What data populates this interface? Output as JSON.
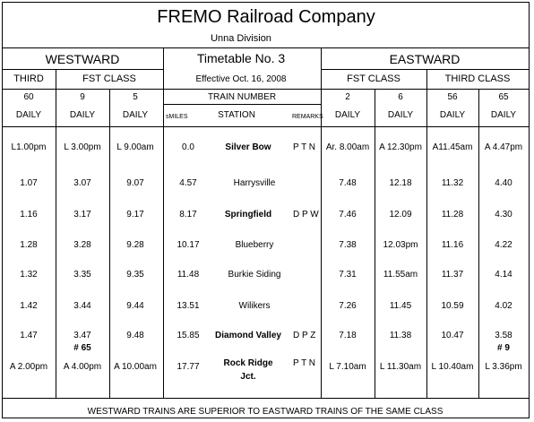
{
  "header": {
    "company": "FREMO Railroad Company",
    "division": "Unna Division",
    "timetable": "Timetable No. 3",
    "effective": "Effective Oct. 16, 2008"
  },
  "westward": {
    "label": "WESTWARD",
    "classes": [
      "THIRD",
      "FST CLASS"
    ],
    "trains": [
      "60",
      "9",
      "5"
    ],
    "days": [
      "DAILY",
      "DAILY",
      "DAILY"
    ]
  },
  "eastward": {
    "label": "EASTWARD",
    "classes": [
      "FST CLASS",
      "THIRD CLASS"
    ],
    "trains": [
      "2",
      "6",
      "56",
      "65"
    ],
    "days": [
      "DAILY",
      "DAILY",
      "DAILY",
      "DAILY"
    ]
  },
  "center": {
    "train_number_label": "TRAIN NUMBER",
    "miles_label": "sMILES",
    "station_label": "STATION",
    "remarks_label": "REMARKS"
  },
  "rows": [
    {
      "w60": "L1.00pm",
      "w9": "L 3.00pm",
      "w5": "L 9.00am",
      "miles": "0.0",
      "station": "Silver Bow",
      "station2": "",
      "bold": true,
      "remarks": "P T N",
      "e2": "Ar. 8.00am",
      "e6": "A 12.30pm",
      "e56": "A11.45am",
      "e65": "A 4.47pm"
    },
    {
      "w60": "1.07",
      "w9": "3.07",
      "w5": "9.07",
      "miles": "4.57",
      "station": "Harrysville",
      "station2": "",
      "bold": false,
      "remarks": "",
      "e2": "7.48",
      "e6": "12.18",
      "e56": "11.32",
      "e65": "4.40"
    },
    {
      "w60": "1.16",
      "w9": "3.17",
      "w5": "9.17",
      "miles": "8.17",
      "station": "Springfield",
      "station2": "",
      "bold": true,
      "remarks": "D P W",
      "e2": "7.46",
      "e6": "12.09",
      "e56": "11.28",
      "e65": "4.30"
    },
    {
      "w60": "1.28",
      "w9": "3.28",
      "w5": "9.28",
      "miles": "10.17",
      "station": "Blueberry",
      "station2": "",
      "bold": false,
      "remarks": "",
      "e2": "7.38",
      "e6": "12.03pm",
      "e56": "11.16",
      "e65": "4.22"
    },
    {
      "w60": "1.32",
      "w9": "3.35",
      "w5": "9.35",
      "miles": "11.48",
      "station": "Burkie Siding",
      "station2": "",
      "bold": false,
      "remarks": "",
      "e2": "7.31",
      "e6": "11.55am",
      "e56": "11.37",
      "e65": "4.14"
    },
    {
      "w60": "1.42",
      "w9": "3.44",
      "w5": "9.44",
      "miles": "13.51",
      "station": "Wilikers",
      "station2": "",
      "bold": false,
      "remarks": "",
      "e2": "7.26",
      "e6": "11.45",
      "e56": "10.59",
      "e65": "4.02"
    },
    {
      "w60": "1.47",
      "w9": "3.47",
      "w5": "9.48",
      "miles": "15.85",
      "station": "Diamond Valley",
      "station2": "",
      "bold": true,
      "remarks": "D P Z",
      "e2": "7.18",
      "e6": "11.38",
      "e56": "10.47",
      "e65": "3.58"
    },
    {
      "w60": "A 2.00pm",
      "w9": "A 4.00pm",
      "w5": "A 10.00am",
      "miles": "17.77",
      "station": "Rock Ridge",
      "station2": "Jct.",
      "bold": true,
      "remarks": "P T N",
      "e2": "L 7.10am",
      "e6": "L 11.30am",
      "e56": "L 10.40am",
      "e65": "L 3.36pm"
    }
  ],
  "meets": {
    "w9": "# 65",
    "e65": "# 9"
  },
  "footer": "WESTWARD TRAINS ARE SUPERIOR TO EASTWARD TRAINS OF THE SAME CLASS"
}
